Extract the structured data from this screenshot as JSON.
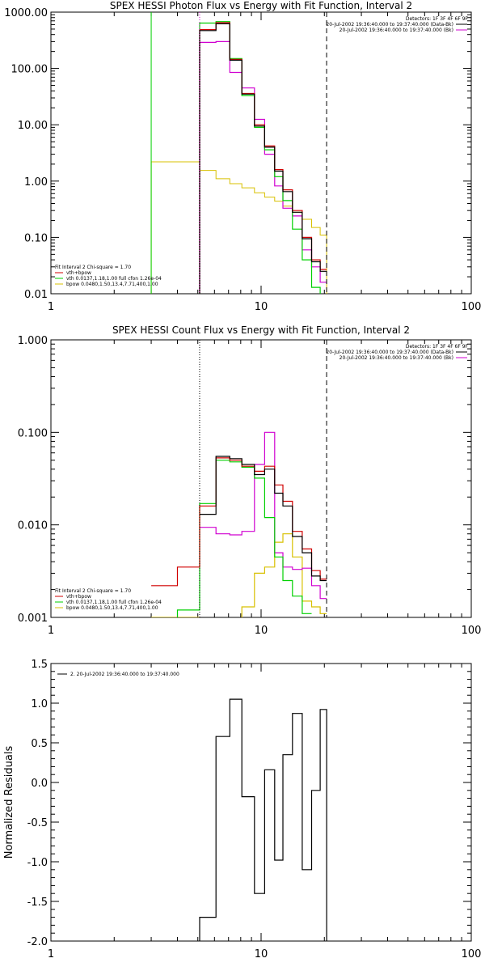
{
  "colors": {
    "background": "#ffffff",
    "axes": "#000000",
    "data": "#000000",
    "total_fit": "#d00000",
    "vth": "#00d000",
    "bpow": "#d8c000",
    "background_model": "#d000d0"
  },
  "chart_data": [
    {
      "type": "line",
      "title": "SPEX HESSI Photon Flux vs Energy with Fit Function, Interval 2",
      "xlabel": "",
      "ylabel": "",
      "xlim": [
        1,
        100
      ],
      "ylim": [
        0.01,
        1000
      ],
      "xscale": "log",
      "yscale": "log",
      "x_ticks": [
        1,
        10,
        100
      ],
      "x_tick_labels": [
        "1",
        "10",
        "100"
      ],
      "y_ticks": [
        0.01,
        0.1,
        1,
        10,
        100,
        1000
      ],
      "y_tick_labels": [
        "0.01",
        "0.10",
        "1.00",
        "10.00",
        "100.00",
        "1000.00"
      ],
      "vlines": [
        {
          "x": 5.1,
          "style": "dotted",
          "color": "#d000d0"
        },
        {
          "x": 20.5,
          "style": "dashed",
          "color": "#000000"
        }
      ],
      "legend_tr": [
        "Detectors: 1F 3F 4F 6F 9F",
        "20-Jul-2002 19:36:40.000 to 19:37:40.000 (Data-Bk)",
        "20-Jul-2002 19:36:40.000 to 19:37:40.000 (Bk)"
      ],
      "legend_tr_colors": [
        "",
        "#000000",
        "#d000d0"
      ],
      "legend_bl": [
        "Fit Interval 2   Chi-square = 1.70",
        "vth+bpow",
        "vth 0.0137,1.18,1.00  full cfon 1.26e-04",
        "bpow 0.0480,1.50,13.4,7.71,400,1.00"
      ],
      "legend_bl_colors": [
        "",
        "#d00000",
        "#00d000",
        "#d8c000"
      ],
      "bin_edges": [
        5.1,
        6.1,
        7.1,
        8.1,
        9.3,
        10.4,
        11.6,
        12.7,
        14.1,
        15.7,
        17.4,
        19.1,
        20.5
      ],
      "series": [
        {
          "role": "data",
          "color": "#000000",
          "values": [
            470,
            620,
            140,
            35,
            9.5,
            4,
            1.5,
            0.65,
            0.28,
            0.095,
            0.037,
            0.025
          ]
        },
        {
          "role": "total_fit",
          "color": "#d00000",
          "values": [
            490,
            650,
            145,
            36,
            10,
            4.2,
            1.6,
            0.7,
            0.3,
            0.1,
            0.04,
            0.027
          ]
        },
        {
          "role": "vth",
          "color": "#00d000",
          "values": [
            640,
            680,
            150,
            33,
            9,
            3.6,
            1.2,
            0.45,
            0.14,
            0.04,
            0.013,
            0.005
          ]
        },
        {
          "role": "background_model",
          "color": "#d000d0",
          "values": [
            290,
            300,
            85,
            45,
            12.5,
            3,
            0.82,
            0.33,
            0.24,
            0.06,
            0.03,
            0.016
          ]
        }
      ],
      "bpow_steps": {
        "edges": [
          3.0,
          5.1,
          6.1,
          7.1,
          8.1,
          9.3,
          10.4,
          11.6,
          12.7,
          14.1,
          15.7,
          17.4,
          19.1,
          20.5
        ],
        "values": [
          2.2,
          1.55,
          1.1,
          0.9,
          0.76,
          0.62,
          0.52,
          0.44,
          0.36,
          0.28,
          0.21,
          0.15,
          0.11
        ],
        "drop_to": 0.01
      },
      "vth_left_edge": 3.0
    },
    {
      "type": "line",
      "title": "SPEX HESSI Count Flux vs Energy with Fit Function, Interval 2",
      "xlabel": "",
      "ylabel": "",
      "xlim": [
        1,
        100
      ],
      "ylim": [
        0.001,
        1
      ],
      "xscale": "log",
      "yscale": "log",
      "x_ticks": [
        1,
        10,
        100
      ],
      "x_tick_labels": [
        "1",
        "10",
        "100"
      ],
      "y_ticks": [
        0.001,
        0.01,
        0.1,
        1
      ],
      "y_tick_labels": [
        "0.001",
        "0.010",
        "0.100",
        "1.000"
      ],
      "vlines": [
        {
          "x": 5.1,
          "style": "dotted",
          "color": "#000000"
        },
        {
          "x": 20.5,
          "style": "dashed",
          "color": "#000000"
        }
      ],
      "legend_tr": [
        "Detectors: 1F 3F 4F 6F 9F",
        "20-Jul-2002 19:36:40.000 to 19:37:40.000 (Data-Bk)",
        "20-Jul-2002 19:36:40.000 to 19:37:40.000 (Bk)"
      ],
      "legend_tr_colors": [
        "",
        "#000000",
        "#d000d0"
      ],
      "legend_bl": [
        "Fit Interval 2   Chi-square = 1.70",
        "vth+bpow",
        "vth 0.0137,1.18,1.00  full cfon 1.26e-04",
        "bpow 0.0480,1.50,13.4,7.71,400,1.00"
      ],
      "legend_bl_colors": [
        "",
        "#d00000",
        "#00d000",
        "#d8c000"
      ],
      "bin_edges": [
        3.0,
        4.0,
        5.1,
        6.1,
        7.1,
        8.1,
        9.3,
        10.4,
        11.6,
        12.7,
        14.1,
        15.7,
        17.4,
        19.1,
        20.5
      ],
      "series": [
        {
          "role": "data",
          "color": "#000000",
          "values": [
            null,
            null,
            0.013,
            0.055,
            0.052,
            0.045,
            0.035,
            0.04,
            0.022,
            0.016,
            0.0075,
            0.005,
            0.0028,
            0.0025
          ]
        },
        {
          "role": "total_fit",
          "color": "#d00000",
          "values": [
            0.0022,
            0.0035,
            0.016,
            0.053,
            0.05,
            0.043,
            0.038,
            0.043,
            0.027,
            0.018,
            0.0085,
            0.0055,
            0.0032,
            0.0026
          ]
        },
        {
          "role": "vth",
          "color": "#00d000",
          "values": [
            null,
            0.0012,
            0.017,
            0.05,
            0.048,
            0.042,
            0.032,
            0.012,
            0.0045,
            0.0025,
            0.0017,
            0.0011,
            null,
            null
          ]
        },
        {
          "role": "bpow",
          "color": "#d8c000",
          "values": [
            0.001,
            0.001,
            null,
            null,
            null,
            0.0013,
            0.003,
            0.0035,
            0.0065,
            0.008,
            0.0045,
            0.0015,
            0.0013,
            0.0011
          ]
        },
        {
          "role": "background_model",
          "color": "#d000d0",
          "values": [
            null,
            null,
            0.0094,
            0.008,
            0.0078,
            0.0085,
            0.045,
            0.1,
            0.005,
            0.0035,
            0.0033,
            0.0034,
            0.0022,
            0.0016
          ]
        }
      ]
    },
    {
      "type": "line",
      "title": "",
      "xlabel": "",
      "ylabel": "Normalized Residuals",
      "xlim": [
        1,
        100
      ],
      "ylim": [
        -2.0,
        1.5
      ],
      "xscale": "log",
      "yscale": "linear",
      "x_ticks": [
        1,
        10,
        100
      ],
      "x_tick_labels": [
        "1",
        "10",
        "100"
      ],
      "y_ticks": [
        -2.0,
        -1.5,
        -1.0,
        -0.5,
        0.0,
        0.5,
        1.0,
        1.5
      ],
      "y_tick_labels": [
        "-2.0",
        "-1.5",
        "-1.0",
        "-0.5",
        "0.0",
        "0.5",
        "1.0",
        "1.5"
      ],
      "legend_tl": [
        "2. 20-Jul-2002 19:36:40.000 to 19:37:40.000"
      ],
      "bin_edges": [
        5.1,
        6.1,
        7.1,
        8.1,
        9.3,
        10.4,
        11.6,
        12.7,
        14.1,
        15.7,
        17.4,
        19.1,
        20.5
      ],
      "series": [
        {
          "role": "data",
          "color": "#000000",
          "values": [
            -1.7,
            0.58,
            1.05,
            -0.18,
            -1.4,
            0.16,
            -0.98,
            0.35,
            0.87,
            -1.1,
            -0.1,
            0.92
          ]
        }
      ]
    }
  ]
}
